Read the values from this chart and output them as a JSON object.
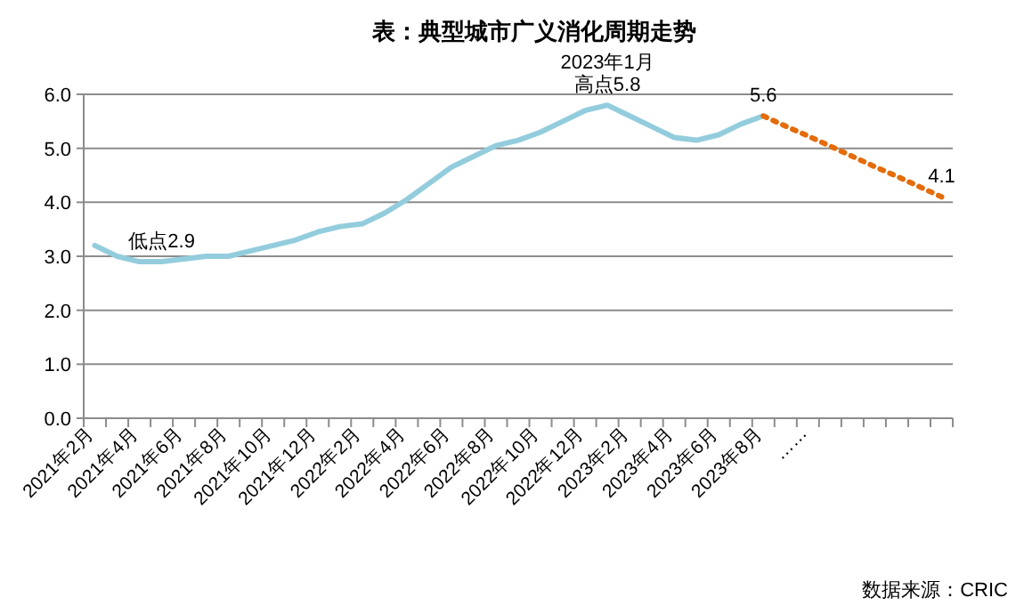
{
  "chart_data": {
    "type": "line",
    "title": "表：典型城市广义消化周期走势",
    "categories": [
      "2021年2月",
      null,
      "2021年4月",
      null,
      "2021年6月",
      null,
      "2021年8月",
      null,
      "2021年10月",
      null,
      "2021年12月",
      null,
      "2022年2月",
      null,
      "2022年4月",
      null,
      "2022年6月",
      null,
      "2022年8月",
      null,
      "2022年10月",
      null,
      "2022年12月",
      null,
      "2023年2月",
      null,
      "2023年4月",
      null,
      "2023年6月",
      null,
      "2023年8月",
      null,
      "……",
      null,
      null,
      null,
      null,
      null,
      null
    ],
    "series": [
      {
        "color": "#93cddd",
        "line_style": "solid",
        "values": [
          3.2,
          3.0,
          2.9,
          2.9,
          2.95,
          3.0,
          3.0,
          3.1,
          3.2,
          3.3,
          3.45,
          3.55,
          3.6,
          3.8,
          4.05,
          4.35,
          4.65,
          4.85,
          5.05,
          5.15,
          5.3,
          5.5,
          5.7,
          5.8,
          5.6,
          5.4,
          5.2,
          5.15,
          5.25,
          5.45,
          5.6,
          null,
          null,
          null,
          null,
          null,
          null,
          null,
          null
        ],
        "value_labels": [
          null,
          null,
          null,
          "低点2.9",
          null,
          null,
          null,
          null,
          null,
          null,
          null,
          null,
          null,
          null,
          null,
          null,
          null,
          null,
          null,
          null,
          null,
          null,
          null,
          [
            "2023年1月",
            "高点5.8"
          ],
          null,
          null,
          null,
          null,
          null,
          null,
          null,
          null,
          null,
          null,
          null,
          null,
          null,
          null,
          null
        ]
      },
      {
        "color": "#e46c0a",
        "line_style": "dotted",
        "values": [
          null,
          null,
          null,
          null,
          null,
          null,
          null,
          null,
          null,
          null,
          null,
          null,
          null,
          null,
          null,
          null,
          null,
          null,
          null,
          null,
          null,
          null,
          null,
          null,
          null,
          null,
          null,
          null,
          null,
          null,
          5.6,
          5.41,
          5.23,
          5.04,
          4.85,
          4.66,
          4.48,
          4.29,
          4.1
        ],
        "value_labels": [
          null,
          null,
          null,
          null,
          null,
          null,
          null,
          null,
          null,
          null,
          null,
          null,
          null,
          null,
          null,
          null,
          null,
          null,
          null,
          null,
          null,
          null,
          null,
          null,
          null,
          null,
          null,
          null,
          null,
          null,
          "5.6",
          null,
          null,
          null,
          null,
          null,
          null,
          null,
          "4.1"
        ]
      }
    ],
    "ylim": [
      0,
      6
    ],
    "yticks": [
      {
        "value": 0,
        "label": "0.0"
      },
      {
        "value": 1,
        "label": "1.0"
      },
      {
        "value": 2,
        "label": "2.0"
      },
      {
        "value": 3,
        "label": "3.0"
      },
      {
        "value": 4,
        "label": "4.0"
      },
      {
        "value": 5,
        "label": "5.0"
      },
      {
        "value": 6,
        "label": "6.0"
      }
    ],
    "grid": "y",
    "marker": "none",
    "annotations": [
      "数据来源：CRIC"
    ]
  }
}
